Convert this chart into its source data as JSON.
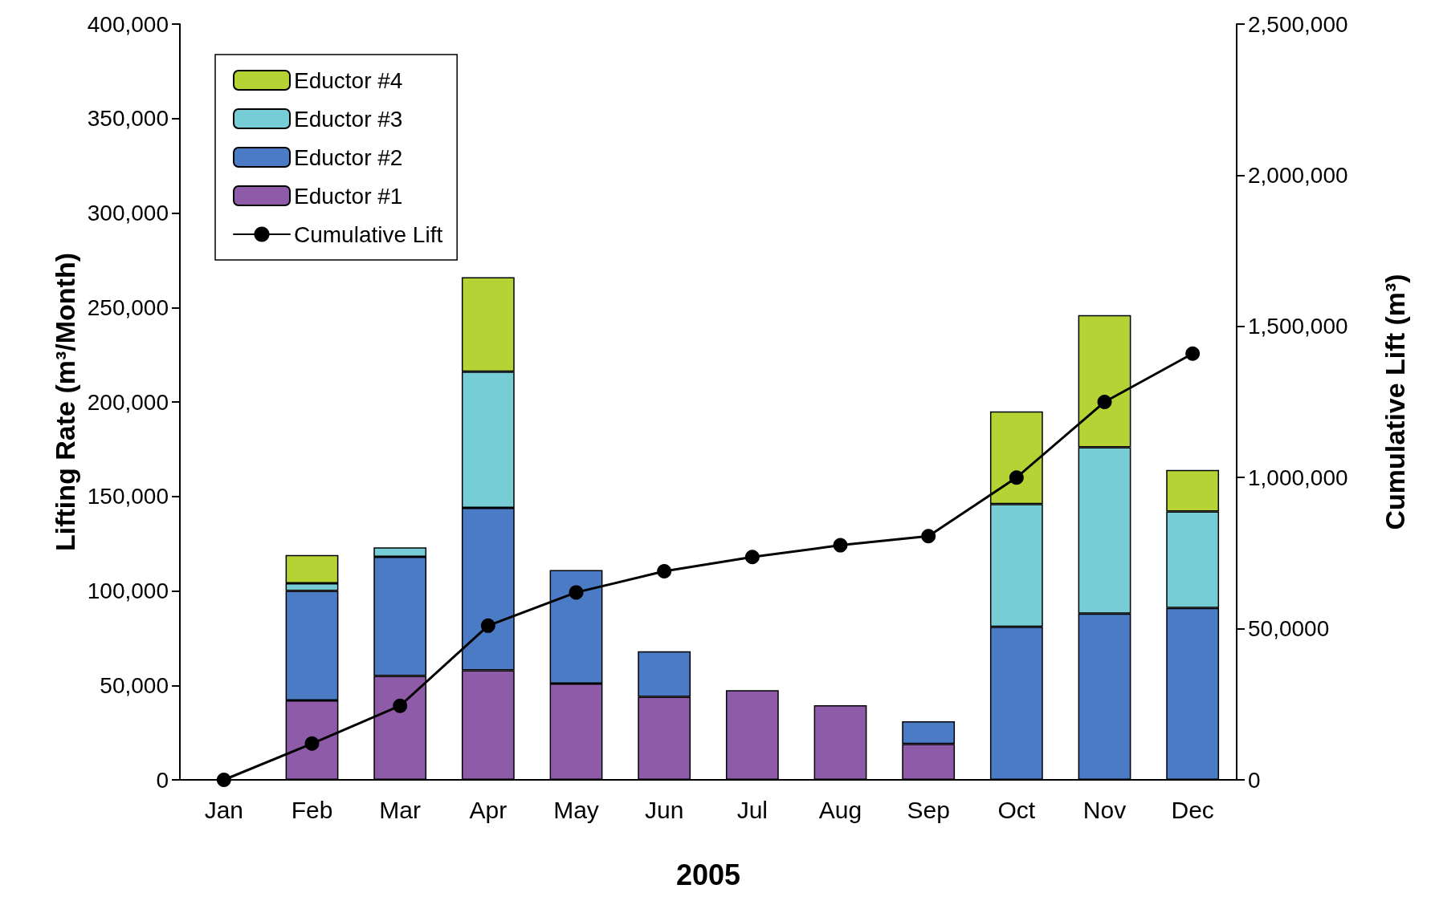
{
  "chart_data": {
    "type": "bar",
    "stacked": true,
    "xlabel": "2005",
    "ylabel": "Lifting Rate (m³/Month)",
    "y2label": "Cumulative Lift (m³)",
    "categories": [
      "Jan",
      "Feb",
      "Mar",
      "Apr",
      "May",
      "Jun",
      "Jul",
      "Aug",
      "Sep",
      "Oct",
      "Nov",
      "Dec"
    ],
    "series": [
      {
        "name": "Eductor #1",
        "color": "#8e5ba8",
        "values": [
          null,
          42000,
          55000,
          58000,
          51000,
          44000,
          47500,
          39500,
          19000,
          null,
          null,
          null
        ]
      },
      {
        "name": "Eductor #2",
        "color": "#4a7bc4",
        "values": [
          null,
          58000,
          63000,
          86000,
          60000,
          24000,
          null,
          null,
          12000,
          81000,
          88000,
          91000
        ]
      },
      {
        "name": "Eductor #3",
        "color": "#76cdd6",
        "values": [
          null,
          4000,
          5000,
          72000,
          null,
          null,
          null,
          null,
          null,
          65000,
          88000,
          51000
        ]
      },
      {
        "name": "Eductor #4",
        "color": "#b5d334",
        "values": [
          null,
          15000,
          null,
          50000,
          null,
          null,
          null,
          null,
          null,
          49000,
          70000,
          22000
        ]
      },
      {
        "name": "Cumulative Lift",
        "type": "line",
        "axis": "y2",
        "color": "#000000",
        "marker": "circle",
        "values": [
          0,
          120000,
          245000,
          510000,
          620000,
          690000,
          737000,
          776000,
          806000,
          1000000,
          1250000,
          1410000
        ]
      }
    ],
    "ylim": [
      0,
      400000
    ],
    "yticks": [
      {
        "value": 0,
        "label": "0"
      },
      {
        "value": 50000,
        "label": "50,000"
      },
      {
        "value": 100000,
        "label": "100,000"
      },
      {
        "value": 150000,
        "label": "150,000"
      },
      {
        "value": 200000,
        "label": "200,000"
      },
      {
        "value": 250000,
        "label": "250,000"
      },
      {
        "value": 300000,
        "label": "300,000"
      },
      {
        "value": 350000,
        "label": "350,000"
      },
      {
        "value": 400000,
        "label": "400,000"
      }
    ],
    "y2lim": [
      0,
      2500000
    ],
    "y2ticks": [
      {
        "value": 0,
        "label": "0"
      },
      {
        "value": 500000,
        "label": "50,0000"
      },
      {
        "value": 1000000,
        "label": "1,000,000"
      },
      {
        "value": 1500000,
        "label": "1,500,000"
      },
      {
        "value": 2000000,
        "label": "2,000,000"
      },
      {
        "value": 2500000,
        "label": "2,500,000"
      }
    ],
    "grid": false,
    "legend": "top left"
  }
}
